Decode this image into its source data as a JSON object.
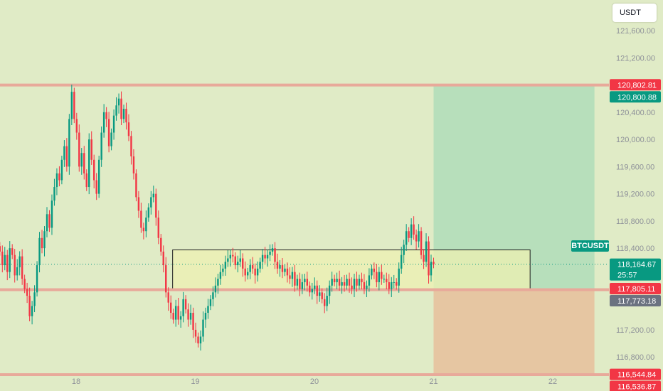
{
  "toolbar": {
    "currency_button": "USDT"
  },
  "colors": {
    "background": "#e0ebc6",
    "level_line": "#e8a99a",
    "candle_up": "#089981",
    "candle_down": "#f23645",
    "profit_zone": "#b7dfbb",
    "loss_zone": "#e6c6a2",
    "range_box": "#eef0b2",
    "badge_red": "#f23645",
    "badge_green": "#089981",
    "badge_grey": "#6b7280"
  },
  "symbol_label": "BTCUSDT",
  "chart_data": {
    "type": "candlestick",
    "symbol": "BTCUSDT",
    "x_ticks": [
      "18",
      "19",
      "20",
      "21",
      "22"
    ],
    "y_ticks": [
      "121,600.00",
      "121,200.00",
      "120,400.00",
      "120,000.00",
      "119,600.00",
      "119,200.00",
      "118,800.00",
      "118,400.00",
      "117,200.00",
      "116,800.00"
    ],
    "ylim": [
      116300,
      122050
    ],
    "price_badges": [
      {
        "value": "120,802.81",
        "color": "red"
      },
      {
        "value": "120,800.88",
        "color": "green"
      },
      {
        "value": "118,164.67",
        "countdown": "25:57",
        "color": "green"
      },
      {
        "value": "117,805.11",
        "color": "red"
      },
      {
        "value": "117,773.18",
        "color": "grey"
      },
      {
        "value": "116,544.84",
        "color": "red"
      },
      {
        "value": "116,536.87",
        "color": "red"
      }
    ],
    "horizontal_levels": [
      120800,
      117790,
      116540
    ],
    "current_price": 118164.67,
    "long_position": {
      "entry": 117800,
      "target": 120800,
      "stop": 116540,
      "from_day": 21.0,
      "to_day": 22.35
    },
    "range_box": {
      "from_day": 18.81,
      "to_day": 21.81,
      "low": 117795,
      "high": 118375
    },
    "series": [
      {
        "day": 17.36,
        "closes": [
          118350,
          118150,
          118300,
          118050,
          118400,
          118300,
          118000,
          118120,
          118280,
          117950,
          117800,
          117700,
          117400,
          117550,
          117750,
          118150,
          118550,
          118400,
          118650,
          118900,
          118700,
          119100,
          119300,
          119500,
          119400,
          119700,
          119900,
          119600,
          120300,
          120700,
          120300,
          120100,
          119600,
          119800,
          119500,
          119300,
          120000,
          119700,
          119400,
          119200,
          119700,
          120100,
          120400,
          120300,
          119900,
          120100,
          120350,
          120500,
          120600,
          120300,
          120450,
          120250,
          120050,
          119750,
          119500,
          119150,
          118950,
          118700,
          118650,
          118850,
          119000,
          119150,
          119200,
          118850,
          118550,
          118350,
          118150,
          117750,
          117600,
          117450,
          117350,
          117550,
          117350,
          117400,
          117650,
          117500,
          117350,
          117450,
          117200,
          117100,
          117000,
          117100,
          117350,
          117450,
          117550,
          117650,
          117750,
          117850,
          117950,
          118050,
          118100,
          118200,
          118250,
          118300,
          118280,
          118150,
          118200,
          118250,
          118100,
          118000,
          118050,
          118150,
          118100,
          118000,
          118100,
          118200,
          118300,
          118250,
          118300,
          118350,
          118400,
          118200,
          118100,
          118150,
          118050,
          118100,
          118000,
          117950,
          118050,
          117850,
          117950,
          117800,
          117900,
          117950,
          117850,
          117750,
          117800,
          117850,
          117700,
          117750,
          117650,
          117550,
          117700,
          117850,
          117950,
          117900,
          117950,
          117850,
          117900,
          117850,
          117950,
          117850,
          117800,
          117950,
          117850,
          117950,
          117900,
          117800,
          117850,
          118000,
          118100,
          118050,
          117900,
          118050,
          117950,
          117950,
          117900,
          117800,
          117900,
          117900,
          117850,
          118100,
          118300,
          118450,
          118650,
          118550,
          118750,
          118600,
          118500,
          118650,
          118300,
          118200,
          118500,
          118000,
          118200,
          118164.67
        ]
      }
    ]
  }
}
